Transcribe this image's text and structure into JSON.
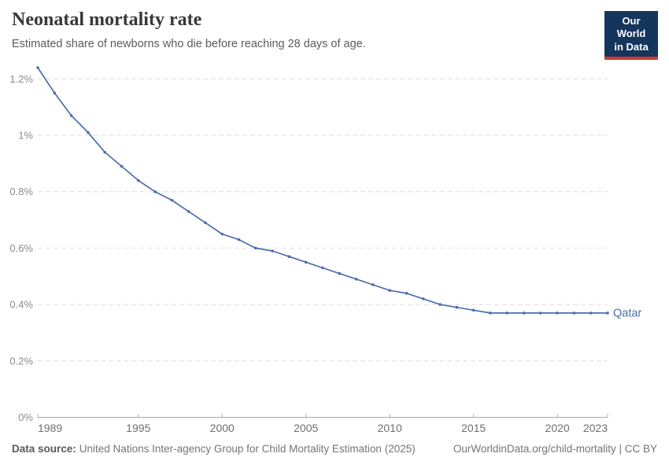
{
  "header": {
    "title": "Neonatal mortality rate",
    "subtitle": "Estimated share of newborns who die before reaching 28 days of age."
  },
  "logo": {
    "line1": "Our World",
    "line2": "in Data"
  },
  "chart_data": {
    "type": "line",
    "title": "Neonatal mortality rate",
    "subtitle": "Estimated share of newborns who die before reaching 28 days of age.",
    "xlabel": "",
    "ylabel": "",
    "unit": "%",
    "xlim": [
      1989,
      2023
    ],
    "ylim": [
      0,
      1.25
    ],
    "grid": "horizontal-dashed",
    "legend_position": "end-of-line-label",
    "series": [
      {
        "name": "Qatar",
        "color": "#4c6ea9",
        "x": [
          1989,
          1990,
          1991,
          1992,
          1993,
          1994,
          1995,
          1996,
          1997,
          1998,
          1999,
          2000,
          2001,
          2002,
          2003,
          2004,
          2005,
          2006,
          2007,
          2008,
          2009,
          2010,
          2011,
          2012,
          2013,
          2014,
          2015,
          2016,
          2017,
          2018,
          2019,
          2020,
          2021,
          2022,
          2023
        ],
        "values": [
          1.24,
          1.15,
          1.07,
          1.01,
          0.94,
          0.89,
          0.84,
          0.8,
          0.77,
          0.73,
          0.69,
          0.65,
          0.63,
          0.6,
          0.59,
          0.57,
          0.55,
          0.53,
          0.51,
          0.49,
          0.47,
          0.45,
          0.44,
          0.42,
          0.4,
          0.39,
          0.38,
          0.37,
          0.37,
          0.37,
          0.37,
          0.37,
          0.37,
          0.37,
          0.37
        ]
      }
    ],
    "yticks": [
      {
        "value": 0,
        "label": "0%"
      },
      {
        "value": 0.2,
        "label": "0.2%"
      },
      {
        "value": 0.4,
        "label": "0.4%"
      },
      {
        "value": 0.6,
        "label": "0.6%"
      },
      {
        "value": 0.8,
        "label": "0.8%"
      },
      {
        "value": 1,
        "label": "1%"
      },
      {
        "value": 1.2,
        "label": "1.2%"
      }
    ],
    "xticks": [
      {
        "value": 1989,
        "label": "1989"
      },
      {
        "value": 1995,
        "label": "1995"
      },
      {
        "value": 2000,
        "label": "2000"
      },
      {
        "value": 2005,
        "label": "2005"
      },
      {
        "value": 2010,
        "label": "2010"
      },
      {
        "value": 2015,
        "label": "2015"
      },
      {
        "value": 2020,
        "label": "2020"
      },
      {
        "value": 2023,
        "label": "2023"
      }
    ]
  },
  "colors": {
    "line": "#4c6ea9",
    "gridline": "#dedede",
    "axis": "#a5a5a5",
    "tick": "#b3b3b3",
    "y_label": "#8b8b8b",
    "x_label": "#6f6f6f",
    "logo_bg": "#14355c",
    "logo_accent": "#d13832"
  },
  "footer": {
    "datasource_label": "Data source:",
    "datasource_text": "United Nations Inter-agency Group for Child Mortality Estimation (2025)",
    "attribution": "OurWorldinData.org/child-mortality | CC BY"
  }
}
